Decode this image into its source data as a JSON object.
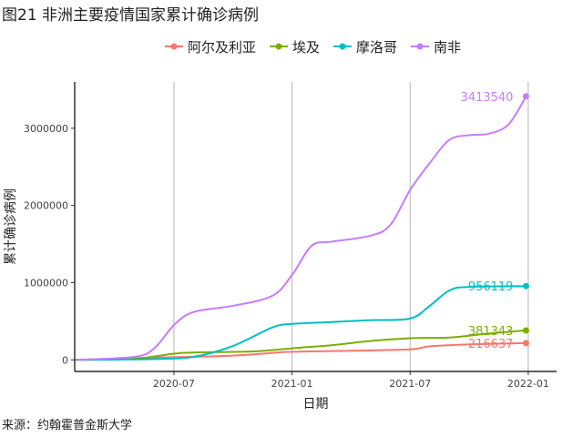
{
  "figure": {
    "title": "图21 非洲主要疫情国家累计确诊病例",
    "source": "来源：约翰霍普金斯大学"
  },
  "chart_data": {
    "type": "line",
    "xlabel": "日期",
    "ylabel": "累计确诊病例",
    "ylim": [
      -150000,
      3600000
    ],
    "yticks": [
      0,
      1000000,
      2000000,
      3000000
    ],
    "ytick_labels": [
      "0",
      "1000000",
      "2000000",
      "3000000"
    ],
    "xticks": [
      "2020-07",
      "2021-01",
      "2021-07",
      "2022-01"
    ],
    "xlim_months": [
      2020.08,
      2022.12
    ],
    "grid": "vertical-major",
    "legend_position": "top",
    "series": [
      {
        "name": "阿尔及利亚",
        "color": "#F8766D",
        "end_label": "216637",
        "points": [
          [
            "2020-02",
            0
          ],
          [
            "2020-06",
            30000
          ],
          [
            "2020-08",
            40000
          ],
          [
            "2020-10",
            55000
          ],
          [
            "2020-12",
            90000
          ],
          [
            "2021-01",
            105000
          ],
          [
            "2021-04",
            118000
          ],
          [
            "2021-07",
            135000
          ],
          [
            "2021-08",
            175000
          ],
          [
            "2021-10",
            200000
          ],
          [
            "2021-12",
            213000
          ],
          [
            "2021-12-28",
            216637
          ]
        ]
      },
      {
        "name": "埃及",
        "color": "#7CAE00",
        "end_label": "381343",
        "points": [
          [
            "2020-02",
            0
          ],
          [
            "2020-05",
            15000
          ],
          [
            "2020-07",
            80000
          ],
          [
            "2020-08",
            95000
          ],
          [
            "2020-11",
            110000
          ],
          [
            "2021-01",
            150000
          ],
          [
            "2021-03",
            190000
          ],
          [
            "2021-05",
            245000
          ],
          [
            "2021-07",
            280000
          ],
          [
            "2021-09",
            290000
          ],
          [
            "2021-11",
            340000
          ],
          [
            "2021-12-28",
            381343
          ]
        ]
      },
      {
        "name": "摩洛哥",
        "color": "#00BFC4",
        "end_label": "956119",
        "points": [
          [
            "2020-02",
            0
          ],
          [
            "2020-06",
            10000
          ],
          [
            "2020-08",
            40000
          ],
          [
            "2020-10",
            180000
          ],
          [
            "2020-12",
            420000
          ],
          [
            "2021-01",
            465000
          ],
          [
            "2021-03",
            490000
          ],
          [
            "2021-05",
            515000
          ],
          [
            "2021-07",
            535000
          ],
          [
            "2021-08",
            700000
          ],
          [
            "2021-09",
            900000
          ],
          [
            "2021-10",
            945000
          ],
          [
            "2021-12-28",
            956119
          ]
        ]
      },
      {
        "name": "南非",
        "color": "#C77CFF",
        "end_label": "3413540",
        "points": [
          [
            "2020-02",
            0
          ],
          [
            "2020-05",
            40000
          ],
          [
            "2020-06",
            150000
          ],
          [
            "2020-07",
            450000
          ],
          [
            "2020-08",
            620000
          ],
          [
            "2020-10",
            700000
          ],
          [
            "2020-12",
            830000
          ],
          [
            "2021-01",
            1100000
          ],
          [
            "2021-02",
            1480000
          ],
          [
            "2021-03",
            1530000
          ],
          [
            "2021-05",
            1610000
          ],
          [
            "2021-06",
            1750000
          ],
          [
            "2021-07",
            2200000
          ],
          [
            "2021-08",
            2550000
          ],
          [
            "2021-09",
            2850000
          ],
          [
            "2021-10",
            2910000
          ],
          [
            "2021-11",
            2930000
          ],
          [
            "2021-12",
            3050000
          ],
          [
            "2021-12-28",
            3413540
          ]
        ]
      }
    ]
  }
}
